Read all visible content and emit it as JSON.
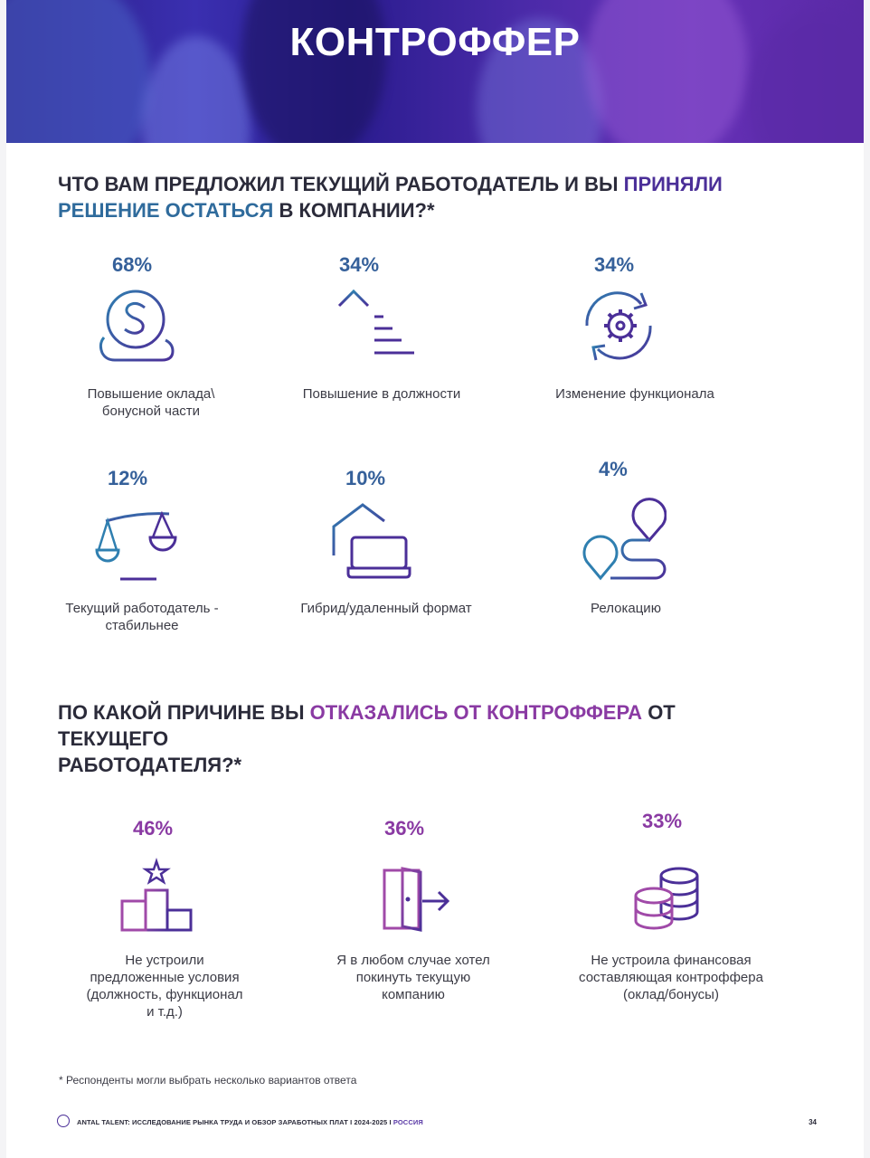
{
  "banner": {
    "title": "КОНТРОФФЕР"
  },
  "q1": {
    "part1": "ЧТО ВАМ ПРЕДЛОЖИЛ ТЕКУЩИЙ РАБОТОДАТЕЛЬ И ВЫ ",
    "hl1": "ПРИНЯЛИ",
    "hl2": "РЕШЕНИЕ ОСТАТЬСЯ",
    "part2": " В КОМПАНИИ?*",
    "items": [
      {
        "pct": "68%",
        "label1": "Повышение оклада\\",
        "label2": "бонусной части",
        "icon": "dollar-coin-hand-icon"
      },
      {
        "pct": "34%",
        "label1": "Повышение в должности",
        "label2": "",
        "icon": "promotion-arrow-icon"
      },
      {
        "pct": "34%",
        "label1": "Изменение функционала",
        "label2": "",
        "icon": "gear-refresh-icon"
      },
      {
        "pct": "12%",
        "label1": "Текущий работодатель -",
        "label2": "стабильнее",
        "icon": "scales-icon"
      },
      {
        "pct": "10%",
        "label1": "Гибрид/удаленный формат",
        "label2": "",
        "icon": "home-laptop-icon"
      },
      {
        "pct": "4%",
        "label1": "Релокацию",
        "label2": "",
        "icon": "route-pins-icon"
      }
    ]
  },
  "q2": {
    "part1": "ПО КАКОЙ ПРИЧИНЕ ВЫ ",
    "hl1": "ОТКАЗАЛИСЬ ОТ КОНТРОФФЕРА",
    "part2": " ОТ ТЕКУЩЕГО",
    "part3": "РАБОТОДАТЕЛЯ?*",
    "items": [
      {
        "pct": "46%",
        "label1": "Не устроили",
        "label2": "предложенные условия",
        "label3": "(должность, функционал",
        "label4": "и т.д.)",
        "icon": "podium-star-icon"
      },
      {
        "pct": "36%",
        "label1": "Я в любом случае хотел",
        "label2": "покинуть текущую",
        "label3": "компанию",
        "label4": "",
        "icon": "exit-door-icon"
      },
      {
        "pct": "33%",
        "label1": "Не устроила финансовая",
        "label2": "составляющая контроффера",
        "label3": "(оклад/бонусы)",
        "label4": "",
        "icon": "coin-stacks-icon"
      }
    ]
  },
  "footnote": "* Респонденты могли выбрать несколько вариантов ответа",
  "footer": {
    "text": "ANTAL TALENT: ИССЛЕДОВАНИЕ РЫНКА ТРУДА И ОБЗОР ЗАРАБОТНЫХ ПЛАТ I 2024-2025 I ",
    "region": "РОССИЯ",
    "page": "34"
  },
  "colors": {
    "blue": "#35609a",
    "violet": "#8a3aa3",
    "purple": "#4b2f98",
    "text": "#2b2b3a"
  }
}
